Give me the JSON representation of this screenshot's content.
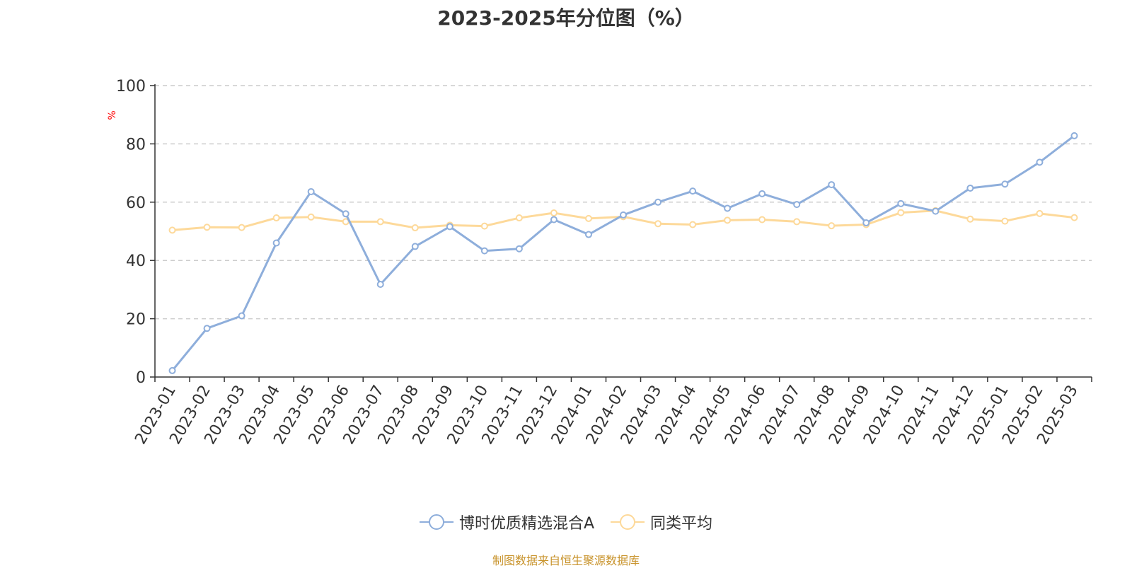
{
  "chart_data": {
    "type": "line",
    "title": "2023-2025年分位图（%）",
    "ylabel": "%",
    "ylim": [
      0,
      100
    ],
    "yticks": [
      0,
      20,
      40,
      60,
      80,
      100
    ],
    "grid": true,
    "legend_position": "bottom",
    "categories": [
      "2023-01",
      "2023-02",
      "2023-03",
      "2023-04",
      "2023-05",
      "2023-06",
      "2023-07",
      "2023-08",
      "2023-09",
      "2023-10",
      "2023-11",
      "2023-12",
      "2024-01",
      "2024-02",
      "2024-03",
      "2024-04",
      "2024-05",
      "2024-06",
      "2024-07",
      "2024-08",
      "2024-09",
      "2024-10",
      "2024-11",
      "2024-12",
      "2025-01",
      "2025-02",
      "2025-03"
    ],
    "series": [
      {
        "name": "博时优质精选混合A",
        "color": "#8eaedb",
        "values": [
          2.2,
          16.7,
          21.0,
          46.0,
          63.6,
          56.0,
          31.8,
          44.8,
          51.6,
          43.3,
          44.0,
          54.0,
          48.9,
          55.6,
          60.0,
          63.8,
          57.9,
          62.9,
          59.2,
          66.0,
          52.9,
          59.5,
          56.9,
          64.8,
          66.2,
          73.7,
          82.8
        ]
      },
      {
        "name": "同类平均",
        "color": "#fdd99a",
        "values": [
          50.4,
          51.4,
          51.3,
          54.6,
          54.9,
          53.3,
          53.3,
          51.2,
          52.1,
          51.8,
          54.6,
          56.3,
          54.4,
          55.0,
          52.6,
          52.3,
          53.8,
          54.0,
          53.3,
          51.9,
          52.3,
          56.4,
          57.1,
          54.2,
          53.5,
          56.1,
          54.7
        ]
      }
    ]
  },
  "footer": {
    "source": "制图数据来自恒生聚源数据库"
  }
}
